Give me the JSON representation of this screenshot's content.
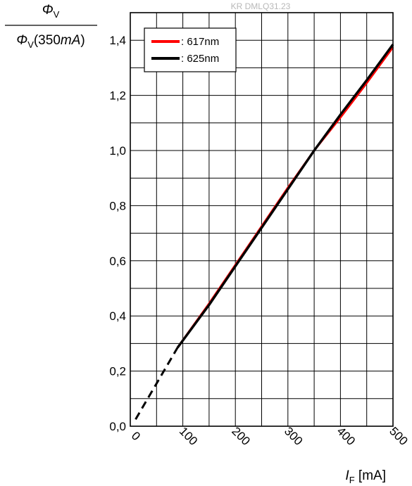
{
  "chart_data": {
    "type": "line",
    "watermark": "KR DMLQ31.23",
    "ylabel": {
      "num_sym": "Φ",
      "num_sub": "V",
      "den_sym": "Φ",
      "den_sub": "V",
      "den_ref": "(350",
      "den_unit": "mA",
      "den_close": ")"
    },
    "xlabel": {
      "sym": "I",
      "sub": "F",
      "unit": " [mA]"
    },
    "xlim": [
      0,
      500
    ],
    "ylim": [
      0,
      1.5
    ],
    "xticks": [
      0,
      100,
      200,
      300,
      400,
      500
    ],
    "xtick_labels": [
      "0",
      "100",
      "200",
      "300",
      "400",
      "500"
    ],
    "yticks": [
      0,
      0.2,
      0.4,
      0.6,
      0.8,
      1.0,
      1.2,
      1.4
    ],
    "ytick_labels": [
      "0,0",
      "0,2",
      "0,4",
      "0,6",
      "0,8",
      "1,0",
      "1,2",
      "1,4"
    ],
    "grid": true,
    "legend_position": "top-left",
    "series": [
      {
        "name": ": 617nm",
        "color": "#ff0000",
        "x": [
          90,
          150,
          200,
          250,
          300,
          350,
          400,
          450,
          500
        ],
        "y": [
          0.285,
          0.445,
          0.585,
          0.725,
          0.865,
          1.0,
          1.12,
          1.245,
          1.375
        ]
      },
      {
        "name": ": 625nm",
        "color": "#000000",
        "x": [
          90,
          150,
          200,
          250,
          300,
          350,
          400,
          450,
          500
        ],
        "y": [
          0.285,
          0.44,
          0.58,
          0.72,
          0.86,
          1.0,
          1.13,
          1.255,
          1.385
        ]
      }
    ],
    "extrapolation": {
      "color": "#000000",
      "x": [
        10,
        90
      ],
      "y": [
        0.025,
        0.285
      ]
    }
  }
}
